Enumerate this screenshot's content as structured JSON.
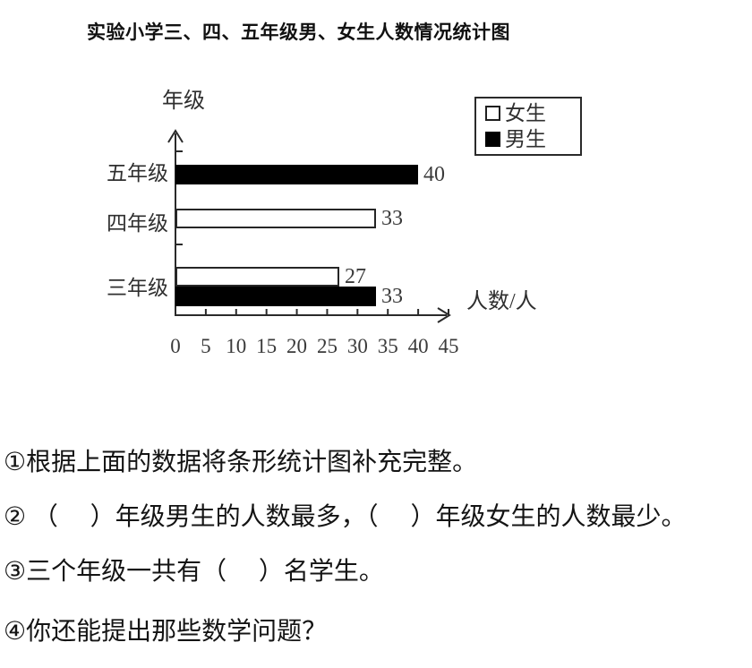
{
  "title": "实验小学三、四、五年级男、女生人数情况统计图",
  "chart_data": {
    "type": "bar",
    "orientation": "horizontal",
    "title": "实验小学三、四、五年级男、女生人数情况统计图",
    "ylabel": "年级",
    "xlabel": "人数/人",
    "xlim": [
      0,
      45
    ],
    "xticks": [
      "0",
      "5",
      "10",
      "15",
      "20",
      "25",
      "30",
      "35",
      "40",
      "45"
    ],
    "categories": [
      "五年级",
      "四年级",
      "三年级"
    ],
    "legend": [
      {
        "key": "girls",
        "label": "女生",
        "fill": "#ffffff"
      },
      {
        "key": "boys",
        "label": "男生",
        "fill": "#000000"
      }
    ],
    "series": [
      {
        "key": "girls",
        "name": "女生",
        "fill": "#ffffff",
        "values": [
          null,
          33,
          27
        ]
      },
      {
        "key": "boys",
        "name": "男生",
        "fill": "#000000",
        "values": [
          40,
          null,
          33
        ]
      }
    ],
    "grid": false,
    "legend_position": "top-right"
  },
  "questions": [
    "①根据上面的数据将条形统计图补充完整。",
    "② （　 ）年级男生的人数最多，（　 ）年级女生的人数最少。",
    "③三个年级一共有（　 ）名学生。",
    "④你还能提出那些数学问题？"
  ],
  "colors": {
    "bar_boys": "#000000",
    "bar_girls": "#ffffff",
    "axis": "#2a2a2a",
    "text": "#141414"
  }
}
